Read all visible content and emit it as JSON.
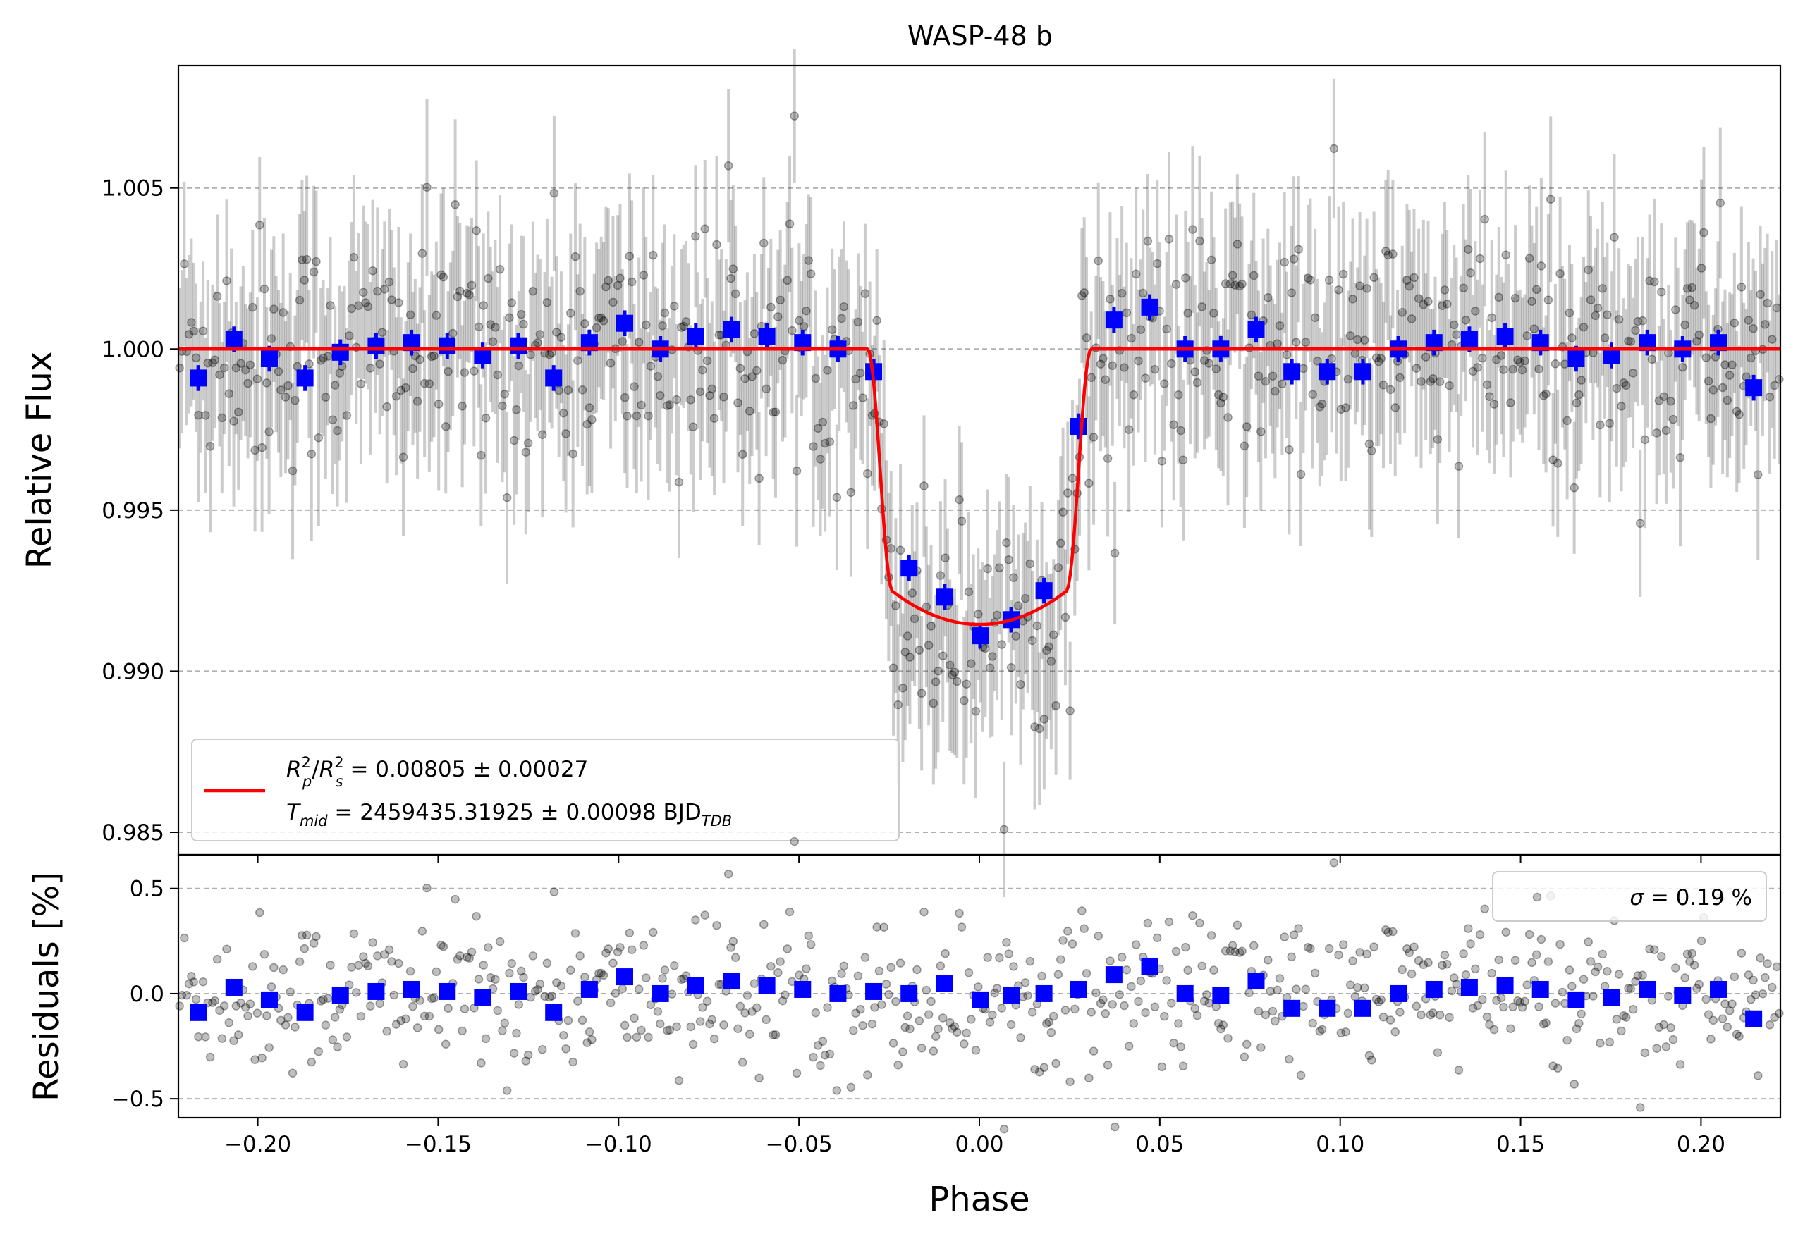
{
  "chart_data": [
    {
      "type": "scatter",
      "panel": "flux",
      "title": "WASP-48 b",
      "xlabel": "Phase",
      "ylabel": "Relative Flux",
      "xlim": [
        -0.222,
        0.222
      ],
      "ylim": [
        0.9843,
        1.0088
      ],
      "xticks": [
        -0.2,
        -0.15,
        -0.1,
        -0.05,
        0.0,
        0.05,
        0.1,
        0.15,
        0.2
      ],
      "xtick_labels": [
        "−0.20",
        "−0.15",
        "−0.10",
        "−0.05",
        "0.00",
        "0.05",
        "0.10",
        "0.15",
        "0.20"
      ],
      "yticks": [
        0.985,
        0.99,
        0.995,
        1.0,
        1.005
      ],
      "ytick_labels": [
        "0.985",
        "0.990",
        "0.995",
        "1.000",
        "1.005"
      ],
      "grid": "horizontal dashed",
      "model": {
        "name": "transit model",
        "color": "#ff0000",
        "depth": 0.00855,
        "baseline": 1.0,
        "t1": -0.031,
        "t2": -0.024,
        "t3": 0.024,
        "t4": 0.031
      },
      "binned": {
        "name": "binned data",
        "color": "#0000ff",
        "x": [
          -0.2165,
          -0.2066,
          -0.1968,
          -0.1869,
          -0.1771,
          -0.1672,
          -0.1574,
          -0.1475,
          -0.1377,
          -0.1278,
          -0.118,
          -0.1081,
          -0.0983,
          -0.0884,
          -0.0786,
          -0.0687,
          -0.0589,
          -0.049,
          -0.0392,
          -0.0293,
          -0.0195,
          -0.0096,
          0.0002,
          0.0088,
          0.0179,
          0.0275,
          0.0373,
          0.0472,
          0.057,
          0.0669,
          0.0767,
          0.0866,
          0.0964,
          0.1063,
          0.1161,
          0.126,
          0.1358,
          0.1457,
          0.1555,
          0.1654,
          0.1752,
          0.1851,
          0.1949,
          0.2048,
          0.2146
        ],
        "y": [
          0.9991,
          1.0003,
          0.9997,
          0.9991,
          0.9999,
          1.0001,
          1.0002,
          1.0001,
          0.9998,
          1.0001,
          0.9991,
          1.0002,
          1.0008,
          1.0,
          1.0004,
          1.0006,
          1.0004,
          1.0002,
          1.0,
          0.9993,
          0.9932,
          0.9923,
          0.9911,
          0.9916,
          0.9925,
          0.9976,
          1.0009,
          1.0013,
          1.0,
          1.0,
          1.0006,
          0.9993,
          0.9993,
          0.9993,
          1.0,
          1.0002,
          1.0003,
          1.0004,
          1.0002,
          0.9997,
          0.9998,
          1.0002,
          1.0,
          1.0002,
          0.9988
        ],
        "yerr": 0.0004
      },
      "unbinned": {
        "name": "unbinned data",
        "color": "#000000",
        "n_points": 680,
        "point_scatter": 0.0019,
        "errorbar_half_length": 0.0024
      },
      "legend": {
        "placement": "lower-left",
        "line1_symbol": "R",
        "line1_sup1": "2",
        "line1_sub1": "p",
        "line1_sep": "/",
        "line1_sup2": "2",
        "line1_sub2": "s",
        "line1_value": " = 0.00805 ± 0.00027",
        "line2_symbol": "T",
        "line2_sub": "mid",
        "line2_value": " = 2459435.31925 ± 0.00098 BJD",
        "line2_unit_sub": "TDB"
      }
    },
    {
      "type": "scatter",
      "panel": "residuals",
      "xlabel": "Phase",
      "ylabel": "Residuals [%]",
      "xlim": [
        -0.222,
        0.222
      ],
      "ylim": [
        -0.59,
        0.66
      ],
      "yticks": [
        -0.5,
        0.0,
        0.5
      ],
      "ytick_labels": [
        "−0.5",
        "0.0",
        "0.5"
      ],
      "grid": "horizontal dashed",
      "binned_residuals": [
        -0.09,
        0.03,
        -0.03,
        -0.09,
        -0.01,
        0.01,
        0.02,
        0.01,
        -0.02,
        0.01,
        -0.09,
        0.02,
        0.08,
        0.0,
        0.04,
        0.06,
        0.04,
        0.02,
        0.0,
        0.01,
        0.0,
        0.05,
        -0.03,
        -0.01,
        0.0,
        0.02,
        0.09,
        0.13,
        0.0,
        -0.01,
        0.06,
        -0.07,
        -0.07,
        -0.07,
        0.0,
        0.02,
        0.03,
        0.04,
        0.02,
        -0.03,
        -0.02,
        0.02,
        -0.01,
        0.02,
        -0.12
      ],
      "residual_scatter_percent": 0.19,
      "legend": {
        "placement": "top-right",
        "label_symbol": "σ",
        "label_value": " = 0.19 %"
      }
    }
  ]
}
